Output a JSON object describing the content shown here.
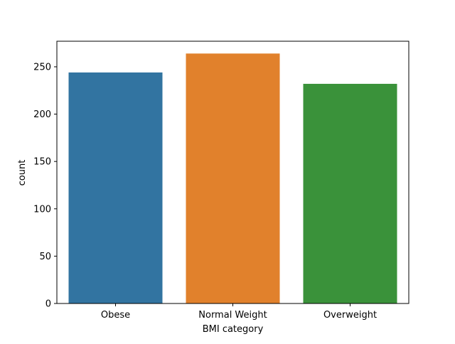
{
  "chart_data": {
    "type": "bar",
    "title": "",
    "xlabel": "BMI category",
    "ylabel": "count",
    "categories": [
      "Obese",
      "Normal Weight",
      "Overweight"
    ],
    "values": [
      244,
      264,
      232
    ],
    "colors": [
      "#3274a1",
      "#e1812c",
      "#3a923a"
    ],
    "ylim": [
      0,
      277
    ],
    "yticks": [
      0,
      50,
      100,
      150,
      200,
      250
    ],
    "grid": false,
    "legend": "none"
  }
}
